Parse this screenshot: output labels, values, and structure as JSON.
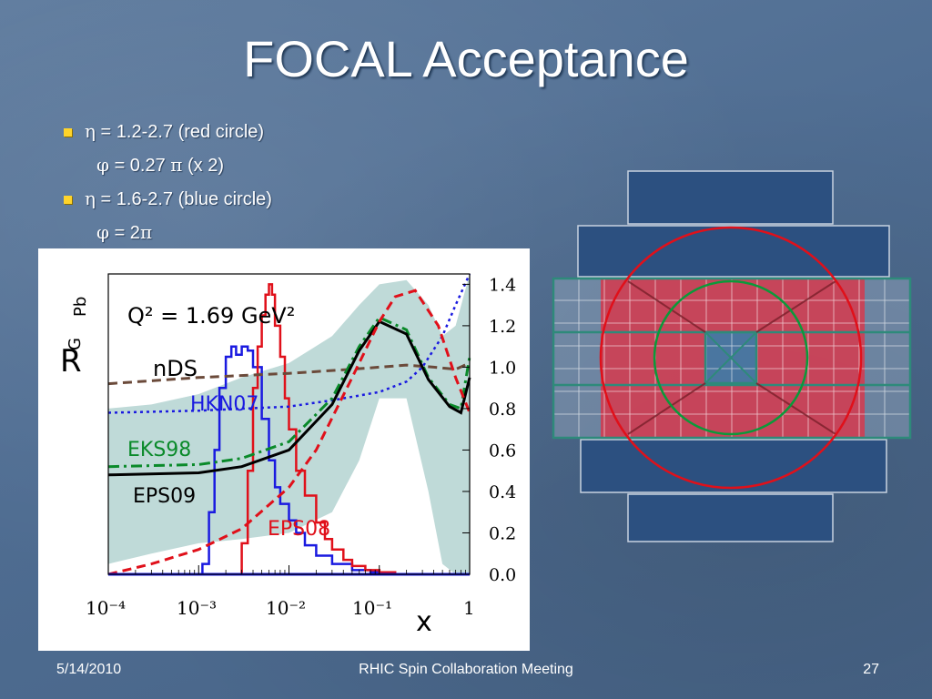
{
  "slide": {
    "title": "FOCAL Acceptance",
    "bullets": [
      {
        "sym": "η",
        "text": " = 1.2-2.7  (red circle)"
      },
      {
        "sym": "φ",
        "text": " = 0.27 ",
        "sym2": "π",
        "text2": " (x 2)"
      },
      {
        "sym": "η",
        "text": " = 1.6-2.7 (blue circle)"
      },
      {
        "sym": "φ",
        "text": " = 2",
        "sym2": "π",
        "text2": ""
      }
    ],
    "footer": {
      "date": "5/14/2010",
      "center": "RHIC Spin Collaboration Meeting",
      "page": "27"
    }
  },
  "colors": {
    "red": "#e0101a",
    "blue": "#1a1ae0",
    "green": "#0a8a2a",
    "brown": "#6b4a3a",
    "band": "#b4d3d1",
    "detector_blue": "#2c5080",
    "detector_red": "#d63a4d",
    "detector_grid": "#2e8a7a"
  },
  "chart_data": {
    "type": "line",
    "ylabel": "R",
    "ylabel_sub": "G",
    "ylabel_sup": "Pb",
    "xlabel": "x",
    "annotation": "Q² = 1.69 GeV²",
    "xscale": "log",
    "xlim": [
      0.0001,
      1
    ],
    "ylim": [
      0.0,
      1.45
    ],
    "x_tick_labels": [
      "10⁻⁴",
      "10⁻³",
      "10⁻²",
      "10⁻¹",
      "1"
    ],
    "y_tick_labels": [
      "1.4",
      "1.2",
      "1.0",
      "0.8",
      "0.6",
      "0.4",
      "0.2",
      "0.0"
    ],
    "y_ticks": [
      1.4,
      1.2,
      1.0,
      0.8,
      0.6,
      0.4,
      0.2,
      0.0
    ],
    "series": [
      {
        "name": "nDS",
        "color": "brown",
        "dash": "dash",
        "x": [
          0.0001,
          0.001,
          0.01,
          0.05,
          0.1,
          0.2,
          0.4,
          0.7,
          1.0
        ],
        "y": [
          0.92,
          0.95,
          0.97,
          0.99,
          1.0,
          1.01,
          1.0,
          0.99,
          1.02
        ]
      },
      {
        "name": "HKN07",
        "color": "blue",
        "dash": "dot",
        "x": [
          0.0001,
          0.001,
          0.01,
          0.03,
          0.1,
          0.2,
          0.3,
          0.5,
          0.7,
          1.0
        ],
        "y": [
          0.78,
          0.79,
          0.81,
          0.84,
          0.88,
          0.93,
          1.0,
          1.15,
          1.3,
          1.45
        ]
      },
      {
        "name": "EKS98",
        "color": "green",
        "dash": "dashdot",
        "x": [
          0.0001,
          0.001,
          0.003,
          0.01,
          0.03,
          0.06,
          0.1,
          0.2,
          0.35,
          0.6,
          0.8,
          1.0
        ],
        "y": [
          0.52,
          0.53,
          0.56,
          0.64,
          0.85,
          1.1,
          1.24,
          1.18,
          0.95,
          0.82,
          0.8,
          1.05
        ]
      },
      {
        "name": "EPS09",
        "color": "black",
        "dash": "solid",
        "x": [
          0.0001,
          0.001,
          0.003,
          0.01,
          0.03,
          0.06,
          0.1,
          0.2,
          0.35,
          0.6,
          0.8,
          1.0
        ],
        "y": [
          0.48,
          0.49,
          0.52,
          0.6,
          0.82,
          1.08,
          1.22,
          1.16,
          0.94,
          0.81,
          0.78,
          0.95
        ]
      },
      {
        "name": "EPS08",
        "color": "red",
        "dash": "dash",
        "x": [
          0.0001,
          0.0003,
          0.001,
          0.003,
          0.01,
          0.02,
          0.05,
          0.1,
          0.15,
          0.25,
          0.45,
          0.7,
          1.0
        ],
        "y": [
          0.0,
          0.05,
          0.12,
          0.22,
          0.42,
          0.6,
          0.95,
          1.22,
          1.34,
          1.37,
          1.2,
          0.95,
          0.78
        ]
      }
    ],
    "histograms": [
      {
        "name": "blue-histogram",
        "color": "blue",
        "x": [
          0.0009,
          0.0011,
          0.0013,
          0.0015,
          0.0017,
          0.002,
          0.0023,
          0.0026,
          0.003,
          0.0035,
          0.004,
          0.005,
          0.006,
          0.007,
          0.008,
          0.01,
          0.012,
          0.015,
          0.02,
          0.03,
          0.05,
          0.08,
          0.12
        ],
        "y": [
          0.0,
          0.05,
          0.3,
          0.6,
          0.9,
          1.05,
          1.1,
          1.06,
          1.1,
          1.08,
          1.0,
          0.75,
          0.55,
          0.42,
          0.34,
          0.26,
          0.2,
          0.14,
          0.09,
          0.05,
          0.02,
          0.01,
          0.0
        ]
      },
      {
        "name": "red-histogram",
        "color": "red",
        "x": [
          0.0025,
          0.003,
          0.0035,
          0.004,
          0.0045,
          0.005,
          0.0055,
          0.006,
          0.0065,
          0.007,
          0.008,
          0.009,
          0.01,
          0.012,
          0.015,
          0.02,
          0.025,
          0.03,
          0.04,
          0.05,
          0.07,
          0.1,
          0.15
        ],
        "y": [
          0.0,
          0.15,
          0.5,
          0.9,
          1.1,
          1.25,
          1.35,
          1.4,
          1.35,
          1.2,
          1.05,
          0.85,
          0.7,
          0.5,
          0.38,
          0.25,
          0.17,
          0.12,
          0.07,
          0.04,
          0.02,
          0.01,
          0.0
        ]
      }
    ],
    "band": {
      "x": [
        0.0001,
        0.0003,
        0.001,
        0.003,
        0.01,
        0.03,
        0.06,
        0.1,
        0.2,
        0.35,
        0.5,
        0.7,
        1.0
      ],
      "upper": [
        0.8,
        0.82,
        0.87,
        0.95,
        1.02,
        1.15,
        1.3,
        1.4,
        1.42,
        1.3,
        1.15,
        1.2,
        1.45
      ],
      "lower": [
        0.05,
        0.1,
        0.15,
        0.17,
        0.2,
        0.3,
        0.55,
        0.85,
        0.85,
        0.4,
        0.05,
        0.0,
        0.0
      ]
    }
  }
}
